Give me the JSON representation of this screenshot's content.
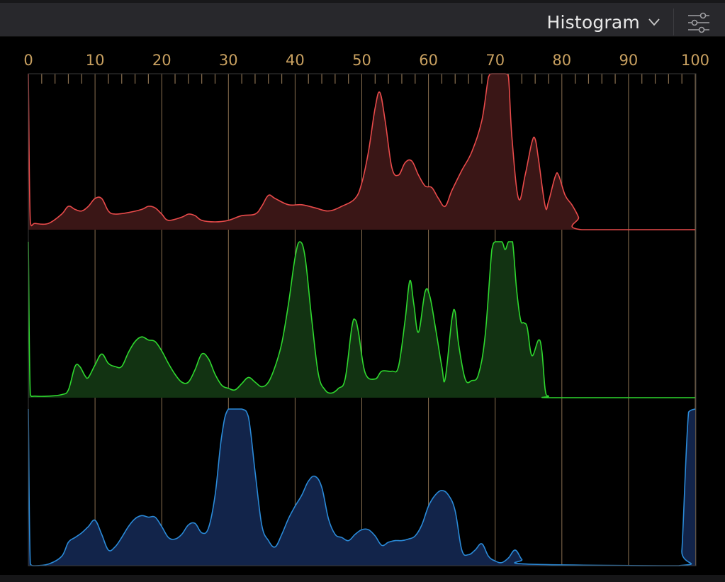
{
  "header": {
    "title": "Histogram",
    "dropdown_icon": "chevron-down-icon",
    "settings_icon": "sliders-icon"
  },
  "scale": {
    "ticks": [
      "0",
      "10",
      "20",
      "30",
      "40",
      "50",
      "60",
      "70",
      "80",
      "90",
      "100"
    ],
    "tick_color": "#c8a060"
  },
  "colors": {
    "red_line": "#e84a4a",
    "red_fill": "#3a1616",
    "green_line": "#2ed82e",
    "green_fill": "#123312",
    "blue_line": "#2a8ad8",
    "blue_fill": "#12244a",
    "grid": "#8a7050"
  },
  "chart_data": {
    "type": "area",
    "x_range": [
      0,
      100
    ],
    "y_range": [
      0,
      1
    ],
    "grid": true,
    "series": [
      {
        "channel": "red",
        "points": [
          [
            0,
            1.0
          ],
          [
            0.3,
            0.05
          ],
          [
            1,
            0.04
          ],
          [
            3,
            0.04
          ],
          [
            5,
            0.1
          ],
          [
            6,
            0.15
          ],
          [
            7,
            0.13
          ],
          [
            8,
            0.12
          ],
          [
            9,
            0.15
          ],
          [
            10,
            0.2
          ],
          [
            11,
            0.2
          ],
          [
            12,
            0.12
          ],
          [
            13,
            0.1
          ],
          [
            15,
            0.11
          ],
          [
            17,
            0.13
          ],
          [
            18,
            0.15
          ],
          [
            19,
            0.14
          ],
          [
            20,
            0.1
          ],
          [
            21,
            0.06
          ],
          [
            23,
            0.08
          ],
          [
            24,
            0.1
          ],
          [
            25,
            0.09
          ],
          [
            26,
            0.06
          ],
          [
            28,
            0.05
          ],
          [
            30,
            0.06
          ],
          [
            32,
            0.09
          ],
          [
            34,
            0.1
          ],
          [
            35,
            0.15
          ],
          [
            36,
            0.22
          ],
          [
            37,
            0.2
          ],
          [
            39,
            0.16
          ],
          [
            41,
            0.16
          ],
          [
            43,
            0.14
          ],
          [
            45,
            0.12
          ],
          [
            47,
            0.15
          ],
          [
            49,
            0.2
          ],
          [
            50,
            0.3
          ],
          [
            51,
            0.5
          ],
          [
            52,
            0.78
          ],
          [
            52.7,
            0.88
          ],
          [
            53.5,
            0.7
          ],
          [
            54.5,
            0.4
          ],
          [
            55.5,
            0.35
          ],
          [
            56.5,
            0.43
          ],
          [
            57.5,
            0.44
          ],
          [
            58.5,
            0.35
          ],
          [
            59.5,
            0.28
          ],
          [
            60.5,
            0.27
          ],
          [
            61.5,
            0.2
          ],
          [
            62.5,
            0.15
          ],
          [
            63.5,
            0.25
          ],
          [
            65,
            0.38
          ],
          [
            66.5,
            0.5
          ],
          [
            68,
            0.7
          ],
          [
            69,
            0.98
          ],
          [
            69.5,
            1.0
          ],
          [
            71.5,
            1.0
          ],
          [
            72,
            0.98
          ],
          [
            72.5,
            0.6
          ],
          [
            73.5,
            0.2
          ],
          [
            74.5,
            0.35
          ],
          [
            75.5,
            0.56
          ],
          [
            76,
            0.58
          ],
          [
            76.5,
            0.45
          ],
          [
            77.5,
            0.15
          ],
          [
            78,
            0.18
          ],
          [
            79,
            0.34
          ],
          [
            79.5,
            0.35
          ],
          [
            80.5,
            0.22
          ],
          [
            81.5,
            0.16
          ],
          [
            82.5,
            0.08
          ],
          [
            83,
            0.0
          ],
          [
            100,
            0.0
          ]
        ]
      },
      {
        "channel": "green",
        "points": [
          [
            0,
            1.0
          ],
          [
            0.3,
            0.02
          ],
          [
            1,
            0.01
          ],
          [
            3,
            0.01
          ],
          [
            5,
            0.02
          ],
          [
            6,
            0.05
          ],
          [
            7,
            0.2
          ],
          [
            7.7,
            0.2
          ],
          [
            8.5,
            0.14
          ],
          [
            9,
            0.13
          ],
          [
            10,
            0.21
          ],
          [
            11,
            0.28
          ],
          [
            12,
            0.22
          ],
          [
            13,
            0.2
          ],
          [
            14,
            0.2
          ],
          [
            15,
            0.29
          ],
          [
            16,
            0.36
          ],
          [
            17,
            0.39
          ],
          [
            18,
            0.37
          ],
          [
            19,
            0.36
          ],
          [
            20,
            0.3
          ],
          [
            21,
            0.22
          ],
          [
            22,
            0.15
          ],
          [
            23,
            0.1
          ],
          [
            24,
            0.1
          ],
          [
            25,
            0.18
          ],
          [
            26,
            0.28
          ],
          [
            27,
            0.25
          ],
          [
            28,
            0.15
          ],
          [
            29,
            0.08
          ],
          [
            30,
            0.06
          ],
          [
            31,
            0.05
          ],
          [
            32,
            0.09
          ],
          [
            33,
            0.13
          ],
          [
            34,
            0.1
          ],
          [
            35,
            0.07
          ],
          [
            36,
            0.1
          ],
          [
            37,
            0.2
          ],
          [
            38,
            0.35
          ],
          [
            39,
            0.6
          ],
          [
            40,
            0.9
          ],
          [
            40.7,
            1.0
          ],
          [
            41.5,
            0.9
          ],
          [
            42.5,
            0.5
          ],
          [
            43.5,
            0.15
          ],
          [
            44.5,
            0.05
          ],
          [
            45.5,
            0.03
          ],
          [
            46.5,
            0.06
          ],
          [
            47.5,
            0.12
          ],
          [
            48.5,
            0.45
          ],
          [
            49,
            0.5
          ],
          [
            49.5,
            0.42
          ],
          [
            50.5,
            0.16
          ],
          [
            52,
            0.12
          ],
          [
            53,
            0.17
          ],
          [
            54.5,
            0.17
          ],
          [
            55.5,
            0.2
          ],
          [
            56.5,
            0.5
          ],
          [
            57.2,
            0.75
          ],
          [
            57.8,
            0.6
          ],
          [
            58.5,
            0.42
          ],
          [
            59.5,
            0.68
          ],
          [
            60.2,
            0.65
          ],
          [
            61,
            0.46
          ],
          [
            62,
            0.2
          ],
          [
            62.5,
            0.12
          ],
          [
            63.5,
            0.5
          ],
          [
            64,
            0.55
          ],
          [
            64.5,
            0.35
          ],
          [
            65.5,
            0.12
          ],
          [
            66.5,
            0.11
          ],
          [
            67.5,
            0.15
          ],
          [
            68.5,
            0.4
          ],
          [
            69.5,
            0.95
          ],
          [
            70,
            1.0
          ],
          [
            71,
            1.0
          ],
          [
            71.5,
            0.95
          ],
          [
            72,
            1.0
          ],
          [
            72.6,
            1.0
          ],
          [
            73.2,
            0.7
          ],
          [
            73.8,
            0.5
          ],
          [
            74.3,
            0.48
          ],
          [
            74.8,
            0.45
          ],
          [
            75.5,
            0.27
          ],
          [
            76.5,
            0.37
          ],
          [
            77,
            0.3
          ],
          [
            77.5,
            0.05
          ],
          [
            78,
            0.01
          ],
          [
            79,
            0.0
          ],
          [
            100,
            0.0
          ]
        ]
      },
      {
        "channel": "blue",
        "points": [
          [
            0,
            1.0
          ],
          [
            0.3,
            0.01
          ],
          [
            1,
            0.0
          ],
          [
            3,
            0.01
          ],
          [
            5,
            0.06
          ],
          [
            6,
            0.15
          ],
          [
            7,
            0.18
          ],
          [
            8,
            0.21
          ],
          [
            9,
            0.25
          ],
          [
            10,
            0.29
          ],
          [
            11,
            0.2
          ],
          [
            12,
            0.1
          ],
          [
            13,
            0.12
          ],
          [
            14,
            0.18
          ],
          [
            15,
            0.25
          ],
          [
            16,
            0.3
          ],
          [
            17,
            0.32
          ],
          [
            18,
            0.31
          ],
          [
            19,
            0.31
          ],
          [
            20,
            0.25
          ],
          [
            21,
            0.18
          ],
          [
            22,
            0.17
          ],
          [
            23,
            0.2
          ],
          [
            24,
            0.26
          ],
          [
            25,
            0.27
          ],
          [
            26,
            0.21
          ],
          [
            27,
            0.24
          ],
          [
            28,
            0.45
          ],
          [
            29,
            0.83
          ],
          [
            30,
            1.0
          ],
          [
            32,
            1.0
          ],
          [
            33,
            0.95
          ],
          [
            34,
            0.6
          ],
          [
            35,
            0.26
          ],
          [
            36,
            0.16
          ],
          [
            37,
            0.12
          ],
          [
            38,
            0.2
          ],
          [
            39,
            0.3
          ],
          [
            40,
            0.38
          ],
          [
            41,
            0.45
          ],
          [
            42,
            0.54
          ],
          [
            43,
            0.57
          ],
          [
            44,
            0.5
          ],
          [
            45,
            0.3
          ],
          [
            46,
            0.2
          ],
          [
            47,
            0.18
          ],
          [
            48,
            0.16
          ],
          [
            49,
            0.2
          ],
          [
            50,
            0.23
          ],
          [
            51,
            0.23
          ],
          [
            52,
            0.19
          ],
          [
            53,
            0.13
          ],
          [
            54,
            0.15
          ],
          [
            55,
            0.16
          ],
          [
            56,
            0.16
          ],
          [
            57,
            0.17
          ],
          [
            58,
            0.19
          ],
          [
            59,
            0.26
          ],
          [
            60,
            0.38
          ],
          [
            61,
            0.45
          ],
          [
            62,
            0.48
          ],
          [
            63,
            0.45
          ],
          [
            64,
            0.35
          ],
          [
            65,
            0.1
          ],
          [
            66,
            0.07
          ],
          [
            67,
            0.1
          ],
          [
            68,
            0.14
          ],
          [
            69,
            0.06
          ],
          [
            70,
            0.03
          ],
          [
            71,
            0.02
          ],
          [
            72,
            0.05
          ],
          [
            73,
            0.1
          ],
          [
            74,
            0.04
          ],
          [
            75,
            0.01
          ],
          [
            97.5,
            0.0
          ],
          [
            98,
            0.1
          ],
          [
            99,
            0.98
          ],
          [
            100,
            1.0
          ]
        ]
      }
    ]
  }
}
